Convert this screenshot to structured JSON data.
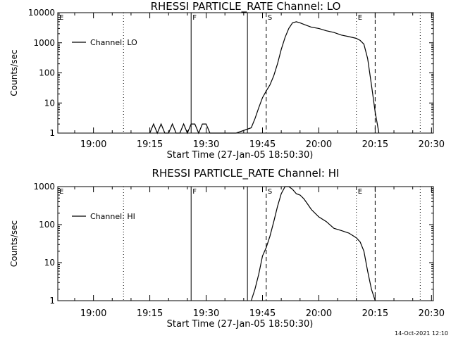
{
  "footer_timestamp": "14-Oct-2021 12:10",
  "chart_data": [
    {
      "type": "line",
      "title": "RHESSI PARTICLE_RATE Channel: LO",
      "xlabel": "Start Time (27-Jan-05 18:50:30)",
      "ylabel": "Counts/sec",
      "yscale": "log",
      "ylim": [
        1,
        10000
      ],
      "xlim": [
        "18:50:30",
        "20:30:30"
      ],
      "x_ticks": [
        "19:00",
        "19:15",
        "19:30",
        "19:45",
        "20:00",
        "20:15",
        "20:30"
      ],
      "y_ticks": [
        "1",
        "10",
        "100",
        "1000",
        "10000"
      ],
      "legend": {
        "position": "top-left",
        "entries": [
          "Channel: LO"
        ]
      },
      "grid": false,
      "series": [
        {
          "name": "Channel: LO",
          "x": [
            "19:15",
            "19:16",
            "19:17",
            "19:18",
            "19:19",
            "19:20",
            "19:21",
            "19:22",
            "19:23",
            "19:24",
            "19:25",
            "19:26",
            "19:27",
            "19:28",
            "19:29",
            "19:30",
            "19:31",
            "19:38",
            "19:42",
            "19:43",
            "19:44",
            "19:45",
            "19:46",
            "19:47",
            "19:48",
            "19:49",
            "19:50",
            "19:51",
            "19:52",
            "19:53",
            "19:54",
            "19:55",
            "19:56",
            "19:58",
            "20:00",
            "20:02",
            "20:04",
            "20:06",
            "20:08",
            "20:10",
            "20:11",
            "20:12",
            "20:13",
            "20:14",
            "20:15",
            "20:16"
          ],
          "y": [
            1,
            2,
            1,
            2,
            1,
            1,
            2,
            1,
            1,
            2,
            1,
            2,
            2,
            1,
            2,
            2,
            1,
            1,
            1.5,
            3,
            7,
            15,
            25,
            40,
            80,
            200,
            600,
            1500,
            3000,
            4600,
            5000,
            4600,
            4100,
            3300,
            3000,
            2500,
            2200,
            1800,
            1600,
            1400,
            1200,
            900,
            300,
            40,
            5,
            1
          ]
        }
      ],
      "annotations": [
        {
          "label": "E",
          "x": "18:50:30",
          "style": "dotted"
        },
        {
          "label": "",
          "x": "19:08",
          "style": "dotted"
        },
        {
          "label": "F",
          "x": "19:26",
          "style": "solid"
        },
        {
          "label": "",
          "x": "19:41",
          "style": "solid"
        },
        {
          "label": "S",
          "x": "19:46",
          "style": "dashed"
        },
        {
          "label": "E",
          "x": "20:10",
          "style": "dotted"
        },
        {
          "label": "",
          "x": "20:15",
          "style": "dashed"
        },
        {
          "label": "",
          "x": "20:27",
          "style": "dotted"
        }
      ]
    },
    {
      "type": "line",
      "title": "RHESSI PARTICLE_RATE Channel: HI",
      "xlabel": "Start Time (27-Jan-05 18:50:30)",
      "ylabel": "Counts/sec",
      "yscale": "log",
      "ylim": [
        1,
        1000
      ],
      "xlim": [
        "18:50:30",
        "20:30:30"
      ],
      "x_ticks": [
        "19:00",
        "19:15",
        "19:30",
        "19:45",
        "20:00",
        "20:15",
        "20:30"
      ],
      "y_ticks": [
        "1",
        "10",
        "100",
        "1000"
      ],
      "legend": {
        "position": "top-left",
        "entries": [
          "Channel: HI"
        ]
      },
      "grid": false,
      "series": [
        {
          "name": "Channel: HI",
          "x": [
            "19:42",
            "19:43",
            "19:44",
            "19:45",
            "19:46",
            "19:47",
            "19:48",
            "19:49",
            "19:50",
            "19:51",
            "19:52",
            "19:53",
            "19:54",
            "19:55",
            "19:56",
            "19:57",
            "19:58",
            "20:00",
            "20:02",
            "20:04",
            "20:06",
            "20:08",
            "20:10",
            "20:11",
            "20:12",
            "20:13",
            "20:14",
            "20:15"
          ],
          "y": [
            1,
            2,
            5,
            15,
            25,
            50,
            120,
            300,
            650,
            1000,
            1000,
            850,
            650,
            600,
            480,
            350,
            250,
            160,
            120,
            80,
            70,
            60,
            45,
            35,
            20,
            6,
            2,
            1
          ]
        }
      ],
      "annotations": [
        {
          "label": "E",
          "x": "18:50:30",
          "style": "dotted"
        },
        {
          "label": "",
          "x": "19:08",
          "style": "dotted"
        },
        {
          "label": "F",
          "x": "19:26",
          "style": "solid"
        },
        {
          "label": "",
          "x": "19:41",
          "style": "solid"
        },
        {
          "label": "S",
          "x": "19:46",
          "style": "dashed"
        },
        {
          "label": "E",
          "x": "20:10",
          "style": "dotted"
        },
        {
          "label": "",
          "x": "20:15",
          "style": "dashed"
        },
        {
          "label": "",
          "x": "20:27",
          "style": "dotted"
        }
      ]
    }
  ]
}
